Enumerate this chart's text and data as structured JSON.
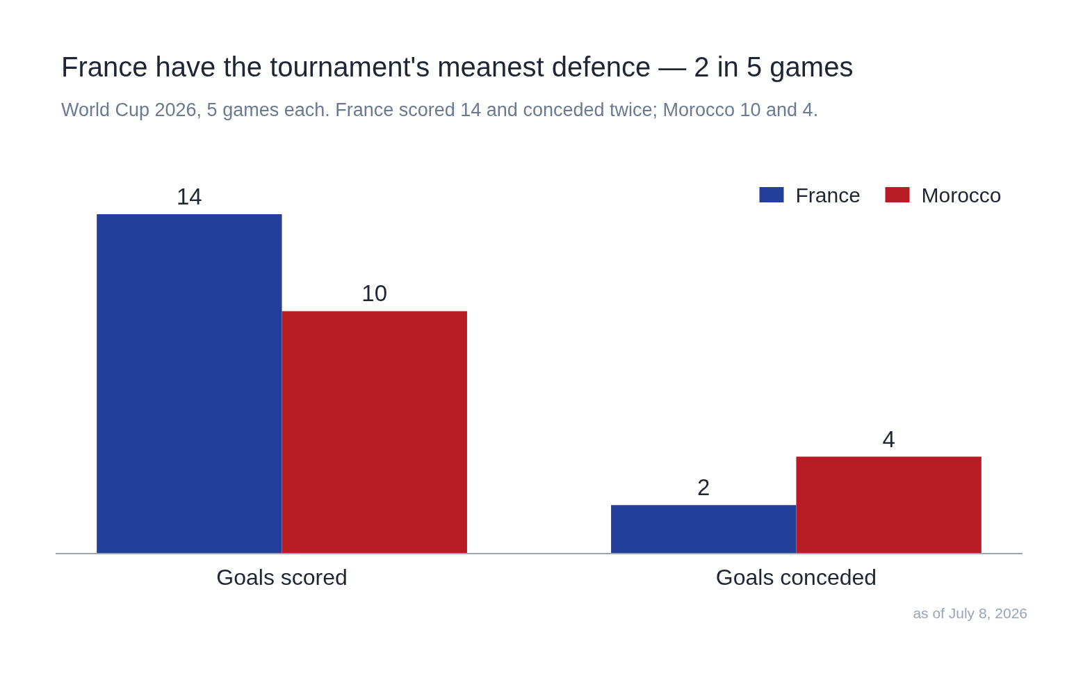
{
  "chart_data": {
    "type": "bar",
    "title": "France have the tournament's meanest defence — 2 in 5 games",
    "subtitle": "World Cup 2026, 5 games each. France scored 14 and conceded twice; Morocco 10 and 4.",
    "categories": [
      "Goals scored",
      "Goals conceded"
    ],
    "series": [
      {
        "name": "France",
        "color": "#22409a",
        "values": [
          14,
          2
        ]
      },
      {
        "name": "Morocco",
        "color": "#b71c24",
        "values": [
          10,
          4
        ]
      }
    ],
    "data_labels": true,
    "legend": "top right",
    "annotations": [
      "as of July 8, 2026"
    ]
  }
}
